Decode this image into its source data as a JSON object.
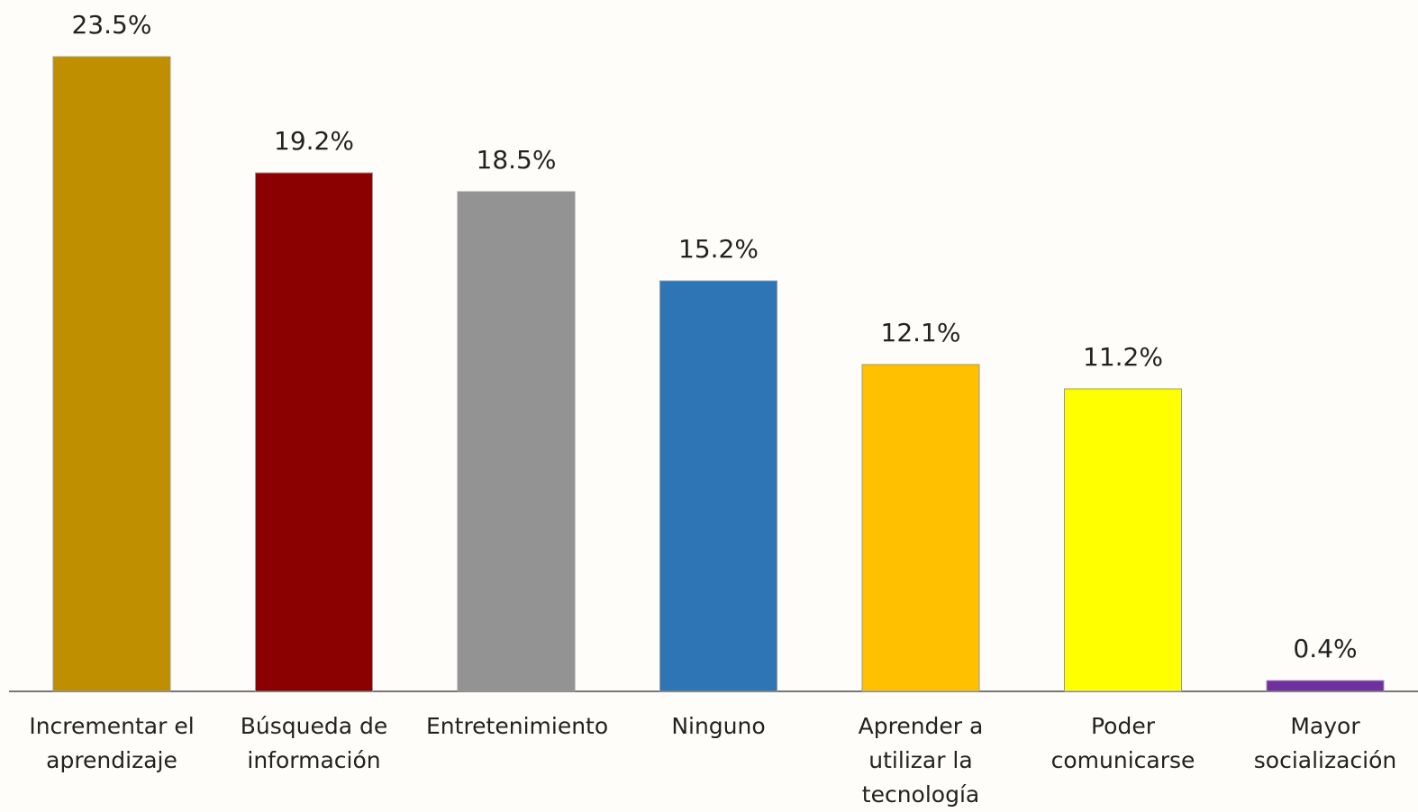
{
  "chart_data": {
    "type": "bar",
    "categories": [
      "Incrementar el aprendizaje",
      "Búsqueda de información",
      "Entretenimiento",
      "Ninguno",
      "Aprender a utilizar la tecnología",
      "Poder comunicarse",
      "Mayor socialización"
    ],
    "values": [
      23.5,
      19.2,
      18.5,
      15.2,
      12.1,
      11.2,
      0.4
    ],
    "value_labels": [
      "23.5%",
      "19.2%",
      "18.5%",
      "15.2%",
      "12.1%",
      "11.2%",
      "0.4%"
    ],
    "colors": [
      "#bf8f00",
      "#8b0000",
      "#939393",
      "#2e75b6",
      "#ffc000",
      "#ffff00",
      "#7030a0"
    ]
  }
}
